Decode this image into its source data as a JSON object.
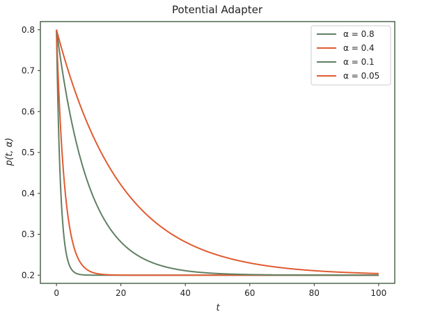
{
  "chart_data": {
    "type": "line",
    "title": "Potential Adapter",
    "xlabel": "t",
    "ylabel": "p(t, α)",
    "xlim": [
      -5,
      105
    ],
    "ylim": [
      0.18,
      0.82
    ],
    "xticks": [
      0,
      20,
      40,
      60,
      80,
      100
    ],
    "yticks": [
      0.2,
      0.3,
      0.4,
      0.5,
      0.6,
      0.7,
      0.8
    ],
    "grid": false,
    "legend_position": "top-right",
    "model": {
      "type": "exponential-decay",
      "y0": 0.8,
      "asymptote": 0.2,
      "t_range": [
        0,
        100
      ]
    },
    "series": [
      {
        "name": "α = 0.8",
        "alpha": 0.8,
        "color": "#5f7f62"
      },
      {
        "name": "α = 0.4",
        "alpha": 0.4,
        "color": "#e05a30"
      },
      {
        "name": "α = 0.1",
        "alpha": 0.1,
        "color": "#5f7f62"
      },
      {
        "name": "α = 0.05",
        "alpha": 0.05,
        "color": "#e05a30"
      }
    ],
    "frame_color": "#3f5a3f"
  }
}
